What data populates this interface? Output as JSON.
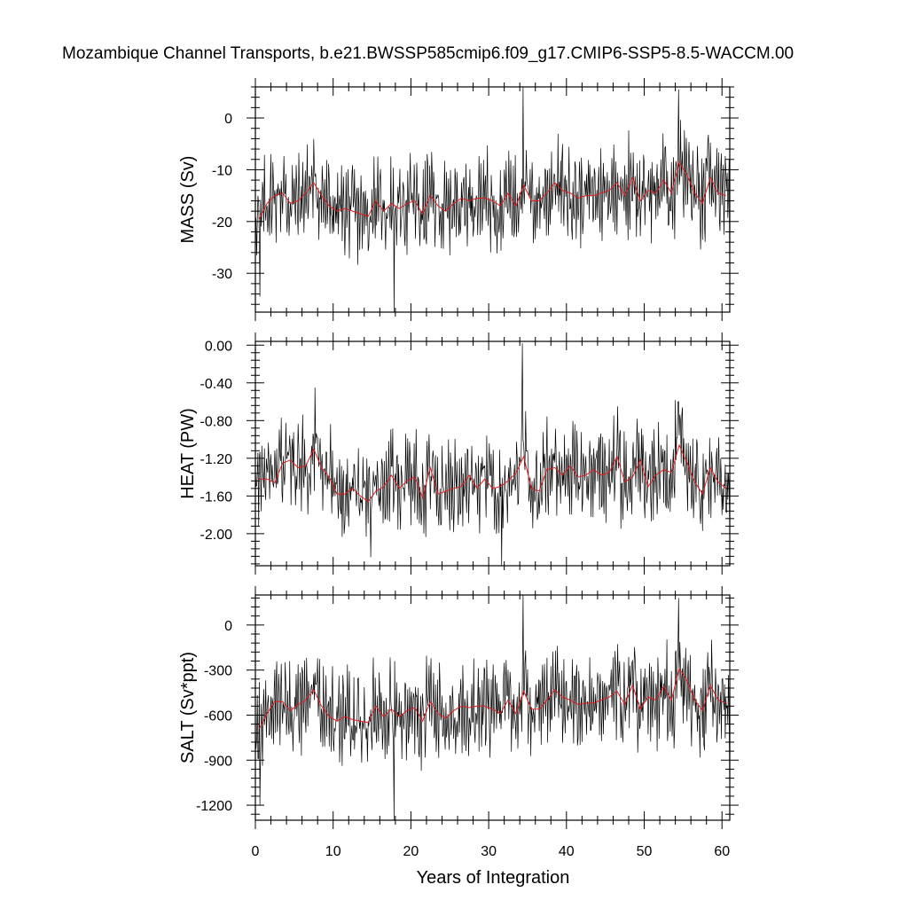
{
  "figure": {
    "title": "Mozambique Channel Transports, b.e21.BWSSP585cmip6.f09_g17.CMIP6-SSP5-8.5-WACCM.00",
    "xlabel": "Years of Integration"
  },
  "chart_data": [
    {
      "type": "line",
      "ylabel": "MASS (Sv)",
      "xlim": [
        0,
        61
      ],
      "ylim": [
        -37.5,
        6
      ],
      "x_ticks": [
        0,
        10,
        20,
        30,
        40,
        50,
        60
      ],
      "y_ticks": [
        0,
        -10,
        -20,
        -30
      ],
      "y_tick_labels": [
        "0",
        "-10",
        "-20",
        "-30"
      ],
      "x_tick_labels": [],
      "grid": false,
      "monthly_color": "#000000",
      "annual_color": "#e31a1c",
      "monthly_key_points": [
        [
          0,
          -19
        ],
        [
          0.6,
          -34.5
        ],
        [
          17.8,
          -37.5
        ],
        [
          34.4,
          6
        ],
        [
          54.4,
          5.5
        ],
        [
          61,
          -33
        ]
      ],
      "annual_series": {
        "x": [
          0.5,
          1.5,
          2.5,
          3.5,
          4.5,
          5.5,
          6.5,
          7.5,
          8.5,
          9.5,
          10.5,
          11.5,
          12.5,
          13.5,
          14.5,
          15.5,
          16.5,
          17.5,
          18.5,
          19.5,
          20.5,
          21.5,
          22.5,
          23.5,
          24.5,
          25.5,
          26.5,
          27.5,
          28.5,
          29.5,
          30.5,
          31.5,
          32.5,
          33.5,
          34.5,
          35.5,
          36.5,
          37.5,
          38.5,
          39.5,
          40.5,
          41.5,
          42.5,
          43.5,
          44.5,
          45.5,
          46.5,
          47.5,
          48.5,
          49.5,
          50.5,
          51.5,
          52.5,
          53.5,
          54.5,
          55.5,
          56.5,
          57.5,
          58.5,
          59.5,
          60.5
        ],
        "values": [
          -19.5,
          -16.5,
          -15,
          -14.5,
          -16.5,
          -16,
          -14.5,
          -12.5,
          -15,
          -17,
          -18,
          -17.5,
          -18,
          -18.5,
          -19,
          -16,
          -18,
          -16.5,
          -17.5,
          -16.5,
          -16,
          -18.5,
          -15,
          -17,
          -18,
          -16.5,
          -15.5,
          -16,
          -15.5,
          -15.5,
          -16,
          -17,
          -14.5,
          -17,
          -13,
          -16,
          -16,
          -14.5,
          -12.5,
          -14,
          -14.5,
          -15.5,
          -15,
          -15,
          -14.5,
          -14,
          -12.5,
          -15,
          -11.5,
          -16,
          -14,
          -14.5,
          -12,
          -14.5,
          -8.5,
          -11,
          -14.5,
          -16.5,
          -11.5,
          -14.5,
          -15
        ]
      }
    },
    {
      "type": "line",
      "ylabel": "HEAT (PW)",
      "xlim": [
        0,
        61
      ],
      "ylim": [
        -2.34,
        0.04
      ],
      "x_ticks": [
        0,
        10,
        20,
        30,
        40,
        50,
        60
      ],
      "y_ticks": [
        0,
        -0.4,
        -0.8,
        -1.2,
        -1.6,
        -2.0
      ],
      "y_tick_labels": [
        "0.00",
        "-0.40",
        "-0.80",
        "-1.20",
        "-1.60",
        "-2.00"
      ],
      "x_tick_labels": [],
      "grid": false,
      "monthly_color": "#000000",
      "annual_color": "#e31a1c",
      "monthly_key_points": [
        [
          0,
          -1.3
        ],
        [
          7.7,
          -0.45
        ],
        [
          14.8,
          -2.25
        ],
        [
          31.7,
          -2.34
        ],
        [
          34.3,
          0.02
        ],
        [
          54.4,
          -0.6
        ],
        [
          61,
          -2.0
        ]
      ],
      "annual_series": {
        "x": [
          0.5,
          1.5,
          2.5,
          3.5,
          4.5,
          5.5,
          6.5,
          7.5,
          8.5,
          9.5,
          10.5,
          11.5,
          12.5,
          13.5,
          14.5,
          15.5,
          16.5,
          17.5,
          18.5,
          19.5,
          20.5,
          21.5,
          22.5,
          23.5,
          24.5,
          25.5,
          26.5,
          27.5,
          28.5,
          29.5,
          30.5,
          31.5,
          32.5,
          33.5,
          34.5,
          35.5,
          36.5,
          37.5,
          38.5,
          39.5,
          40.5,
          41.5,
          42.5,
          43.5,
          44.5,
          45.5,
          46.5,
          47.5,
          48.5,
          49.5,
          50.5,
          51.5,
          52.5,
          53.5,
          54.5,
          55.5,
          56.5,
          57.5,
          58.5,
          59.5,
          60.5
        ],
        "values": [
          -1.42,
          -1.42,
          -1.46,
          -1.25,
          -1.22,
          -1.3,
          -1.28,
          -1.1,
          -1.3,
          -1.4,
          -1.58,
          -1.58,
          -1.52,
          -1.6,
          -1.66,
          -1.55,
          -1.5,
          -1.38,
          -1.52,
          -1.44,
          -1.4,
          -1.62,
          -1.3,
          -1.58,
          -1.55,
          -1.52,
          -1.5,
          -1.38,
          -1.52,
          -1.42,
          -1.52,
          -1.5,
          -1.44,
          -1.36,
          -1.18,
          -1.52,
          -1.55,
          -1.32,
          -1.3,
          -1.38,
          -1.28,
          -1.4,
          -1.38,
          -1.32,
          -1.38,
          -1.35,
          -1.18,
          -1.45,
          -1.4,
          -1.22,
          -1.5,
          -1.38,
          -1.32,
          -1.35,
          -1.06,
          -1.25,
          -1.45,
          -1.58,
          -1.3,
          -1.45,
          -1.52
        ]
      }
    },
    {
      "type": "line",
      "ylabel": "SALT (Sv*ppt)",
      "xlim": [
        0,
        61
      ],
      "ylim": [
        -1300,
        200
      ],
      "x_ticks": [
        0,
        10,
        20,
        30,
        40,
        50,
        60
      ],
      "y_ticks": [
        0,
        -300,
        -600,
        -900,
        -1200
      ],
      "y_tick_labels": [
        "0",
        "-300",
        "-600",
        "-900",
        "-1200"
      ],
      "x_tick_labels": [
        "0",
        "10",
        "20",
        "30",
        "40",
        "50",
        "60"
      ],
      "grid": false,
      "monthly_color": "#000000",
      "annual_color": "#e31a1c",
      "monthly_key_points": [
        [
          0,
          -680
        ],
        [
          0.6,
          -1200
        ],
        [
          17.8,
          -1300
        ],
        [
          34.4,
          200
        ],
        [
          54.4,
          180
        ],
        [
          61,
          -1150
        ]
      ],
      "annual_series": {
        "x": [
          0.5,
          1.5,
          2.5,
          3.5,
          4.5,
          5.5,
          6.5,
          7.5,
          8.5,
          9.5,
          10.5,
          11.5,
          12.5,
          13.5,
          14.5,
          15.5,
          16.5,
          17.5,
          18.5,
          19.5,
          20.5,
          21.5,
          22.5,
          23.5,
          24.5,
          25.5,
          26.5,
          27.5,
          28.5,
          29.5,
          30.5,
          31.5,
          32.5,
          33.5,
          34.5,
          35.5,
          36.5,
          37.5,
          38.5,
          39.5,
          40.5,
          41.5,
          42.5,
          43.5,
          44.5,
          45.5,
          46.5,
          47.5,
          48.5,
          49.5,
          50.5,
          51.5,
          52.5,
          53.5,
          54.5,
          55.5,
          56.5,
          57.5,
          58.5,
          59.5,
          60.5
        ],
        "values": [
          -690,
          -590,
          -510,
          -510,
          -570,
          -530,
          -500,
          -430,
          -540,
          -610,
          -640,
          -610,
          -630,
          -640,
          -650,
          -540,
          -610,
          -560,
          -610,
          -570,
          -550,
          -640,
          -510,
          -590,
          -620,
          -570,
          -540,
          -550,
          -540,
          -540,
          -560,
          -590,
          -500,
          -590,
          -440,
          -560,
          -560,
          -500,
          -430,
          -480,
          -500,
          -530,
          -520,
          -520,
          -500,
          -480,
          -440,
          -530,
          -400,
          -560,
          -480,
          -500,
          -410,
          -500,
          -290,
          -370,
          -500,
          -570,
          -400,
          -500,
          -520
        ]
      }
    }
  ]
}
